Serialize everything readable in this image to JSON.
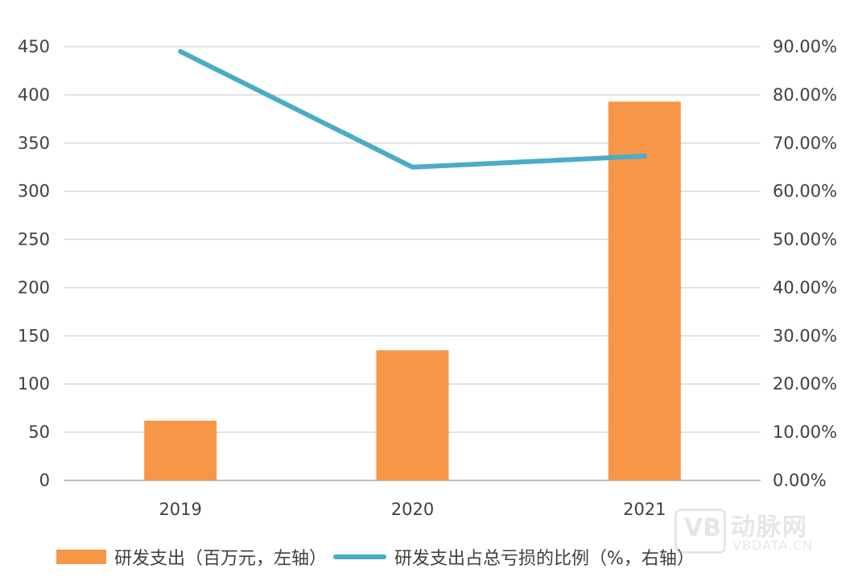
{
  "chart_data": {
    "type": "bar",
    "categories": [
      "2019",
      "2020",
      "2021"
    ],
    "series": [
      {
        "name": "研发支出（百万元，左轴）",
        "type": "bar",
        "axis": "left",
        "values": [
          62,
          135,
          393
        ],
        "color": "#F79646"
      },
      {
        "name": "研发支出占总亏损的比例（%，右轴）",
        "type": "line",
        "axis": "right",
        "values": [
          0.89,
          0.65,
          0.673
        ],
        "color": "#4BACC6"
      }
    ],
    "y_left": {
      "min": 0,
      "max": 450,
      "step": 50,
      "ticks": [
        "0",
        "50",
        "100",
        "150",
        "200",
        "250",
        "300",
        "350",
        "400",
        "450"
      ]
    },
    "y_right": {
      "min": 0,
      "max": 0.9,
      "step": 0.1,
      "ticks": [
        "0.00%",
        "10.00%",
        "20.00%",
        "30.00%",
        "40.00%",
        "50.00%",
        "60.00%",
        "70.00%",
        "80.00%",
        "90.00%"
      ]
    },
    "grid": true,
    "legend_position": "bottom"
  },
  "watermark": {
    "logo_text": "VB",
    "text_cn": "动脉网",
    "text_en": "VBDATA.CN"
  }
}
